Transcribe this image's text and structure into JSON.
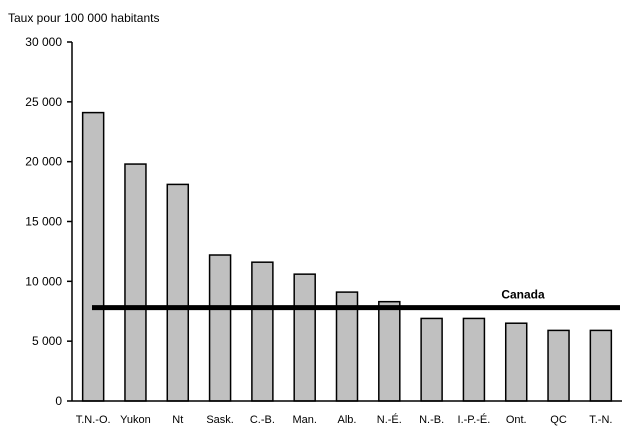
{
  "chart_data": {
    "type": "bar",
    "ylabel": "Taux pour 100 000 habitants",
    "ylim": [
      0,
      30000
    ],
    "yticks": [
      "0",
      "5 000",
      "10 000",
      "15 000",
      "20 000",
      "25 000",
      "30 000"
    ],
    "ytick_values": [
      0,
      5000,
      10000,
      15000,
      20000,
      25000,
      30000
    ],
    "categories": [
      "T.N.-O.",
      "Yukon",
      "Nt",
      "Sask.",
      "C.-B.",
      "Man.",
      "Alb.",
      "N.-É.",
      "N.-B.",
      "I.-P.-É.",
      "Ont.",
      "QC",
      "T.-N."
    ],
    "values": [
      24100,
      19800,
      18100,
      12200,
      11600,
      10600,
      9100,
      8300,
      6900,
      6900,
      6500,
      5900,
      5900
    ],
    "reference_line": {
      "label": "Canada",
      "value": 7800
    },
    "colors": {
      "bar": "#c0c0c0",
      "outline": "#000000",
      "reference": "#000000"
    },
    "grid": false
  }
}
